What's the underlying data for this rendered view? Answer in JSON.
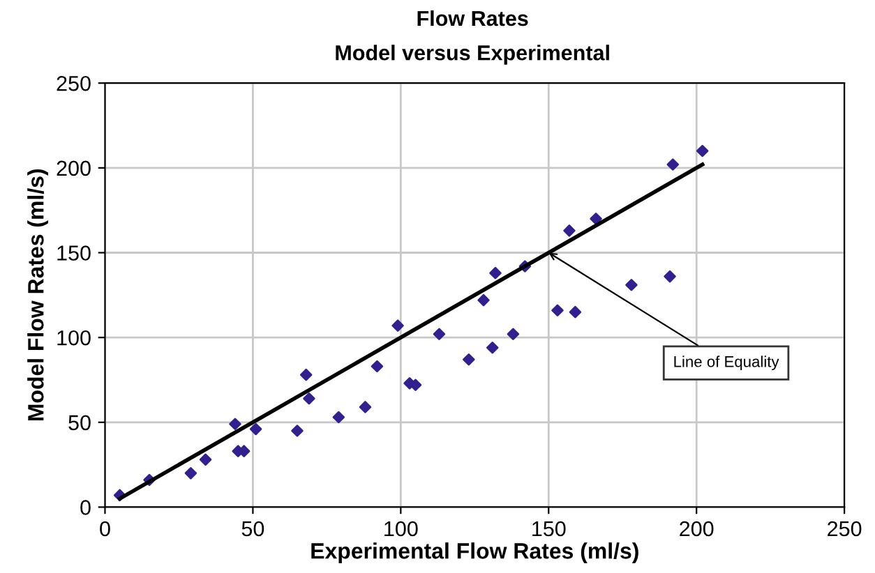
{
  "chart_data": {
    "type": "scatter",
    "title": "Flow Rates",
    "subtitle": "Model versus Experimental",
    "xlabel": "Experimental Flow Rates (ml/s)",
    "ylabel": "Model Flow Rates (ml/s)",
    "xlim": [
      0,
      250
    ],
    "ylim": [
      0,
      250
    ],
    "xticks": [
      0,
      50,
      100,
      150,
      200,
      250
    ],
    "yticks": [
      0,
      50,
      100,
      150,
      200,
      250
    ],
    "grid": true,
    "marker": "diamond",
    "series": [
      {
        "color": "#33208f",
        "x": [
          5,
          15,
          29,
          34,
          44,
          45,
          47,
          51,
          65,
          68,
          69,
          79,
          88,
          92,
          99,
          103,
          105,
          113,
          123,
          128,
          131,
          132,
          138,
          142,
          153,
          157,
          159,
          166,
          178,
          191,
          192,
          202
        ],
        "values": [
          7,
          16,
          20,
          28,
          49,
          33,
          33,
          46,
          45,
          78,
          64,
          53,
          59,
          83,
          107,
          73,
          72,
          102,
          87,
          122,
          94,
          138,
          102,
          142,
          116,
          163,
          115,
          170,
          131,
          136,
          202,
          210
        ]
      },
      {
        "type": "line",
        "color": "#000000",
        "marker": "none",
        "x": [
          5,
          202
        ],
        "values": [
          5,
          202
        ]
      }
    ],
    "annotations": [
      {
        "text": "Line of Equality",
        "x": 150,
        "y": 150
      }
    ]
  }
}
